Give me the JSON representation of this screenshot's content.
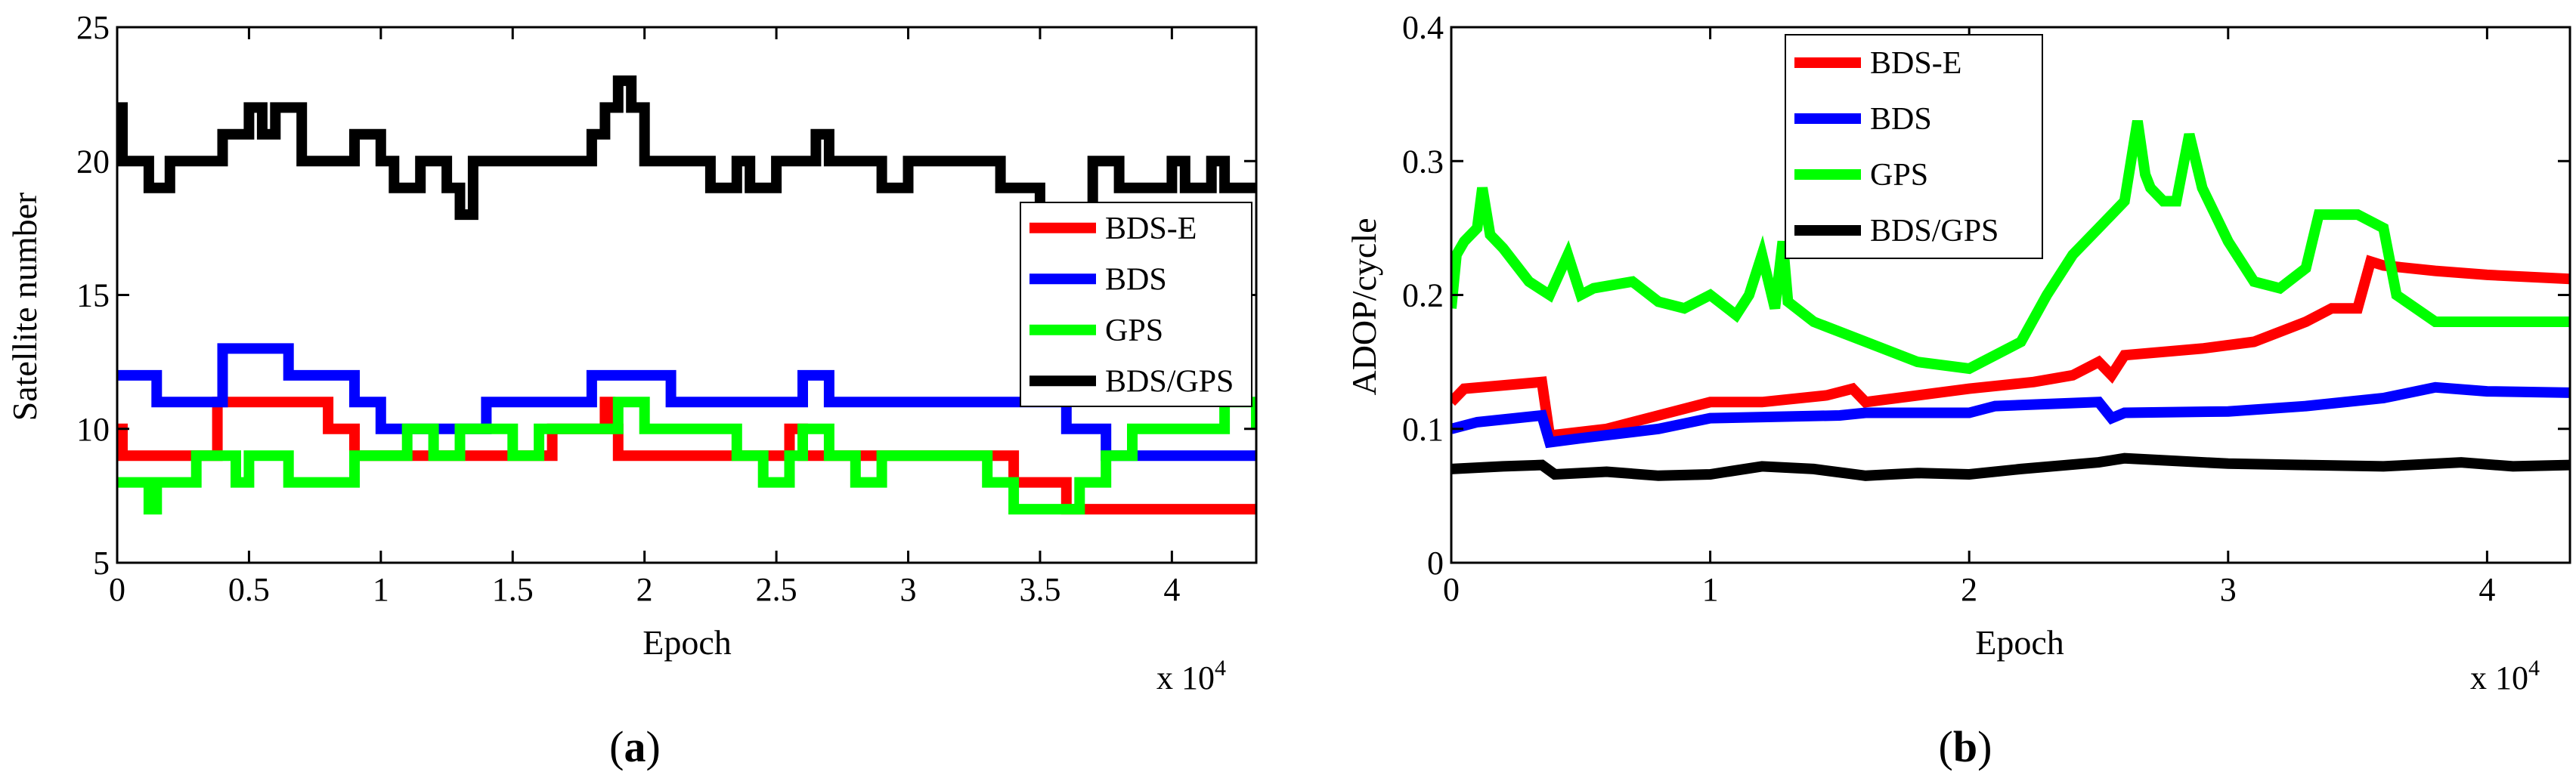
{
  "chart_data": [
    {
      "type": "line",
      "label": "(a)",
      "label_letter": "a",
      "xlabel": "Epoch",
      "ylabel": "Satellite number",
      "x_multiplier": "x 10",
      "x_multiplier_exp": "4",
      "xlim": [
        0,
        4.32
      ],
      "ylim": [
        5,
        25
      ],
      "xticks": [
        0,
        0.5,
        1,
        1.5,
        2,
        2.5,
        3,
        3.5,
        4
      ],
      "xtick_labels": [
        "0",
        "0.5",
        "1",
        "1.5",
        "2",
        "2.5",
        "3",
        "3.5",
        "4"
      ],
      "yticks": [
        5,
        10,
        15,
        20,
        25
      ],
      "ytick_labels": [
        "5",
        "10",
        "15",
        "20",
        "25"
      ],
      "legend_position": "right",
      "series": [
        {
          "name": "BDS-E",
          "color": "#ff0000",
          "step": true,
          "x": [
            0,
            0.02,
            0.35,
            0.38,
            0.75,
            0.8,
            0.9,
            1.15,
            1.6,
            1.65,
            1.7,
            1.8,
            1.85,
            1.87,
            1.9,
            1.95,
            2.0,
            2.5,
            2.55,
            2.6,
            2.95,
            3.0,
            3.35,
            3.4,
            3.6,
            3.7,
            4.32
          ],
          "values": [
            10,
            9,
            9,
            11,
            11,
            10,
            9,
            9,
            9,
            10,
            10,
            10,
            11,
            10,
            9,
            9,
            9,
            9,
            10,
            9,
            9,
            9,
            9,
            8,
            7,
            7,
            7
          ]
        },
        {
          "name": "BDS",
          "color": "#0000ff",
          "step": true,
          "x": [
            0,
            0.15,
            0.3,
            0.4,
            0.5,
            0.65,
            0.9,
            1.0,
            1.3,
            1.4,
            1.5,
            1.8,
            1.85,
            2.1,
            2.2,
            2.35,
            2.5,
            2.6,
            2.7,
            3.6,
            3.75,
            4.32
          ],
          "values": [
            12,
            11,
            11,
            13,
            13,
            12,
            11,
            10,
            10,
            11,
            11,
            12,
            12,
            11,
            11,
            11,
            11,
            12,
            11,
            10,
            9,
            9
          ]
        },
        {
          "name": "GPS",
          "color": "#00ff00",
          "step": true,
          "x": [
            0,
            0.12,
            0.15,
            0.3,
            0.45,
            0.5,
            0.65,
            0.8,
            0.9,
            1.0,
            1.1,
            1.2,
            1.3,
            1.4,
            1.5,
            1.6,
            1.65,
            1.8,
            1.9,
            2.0,
            2.2,
            2.35,
            2.45,
            2.55,
            2.6,
            2.7,
            2.8,
            2.9,
            3.0,
            3.1,
            3.2,
            3.3,
            3.4,
            3.5,
            3.65,
            3.75,
            3.85,
            4.0,
            4.2,
            4.32
          ],
          "values": [
            8,
            7,
            8,
            9,
            8,
            9,
            8,
            8,
            9,
            9,
            10,
            9,
            10,
            10,
            9,
            10,
            10,
            10,
            11,
            10,
            10,
            9,
            8,
            9,
            10,
            9,
            8,
            9,
            9,
            9,
            9,
            8,
            7,
            7,
            8,
            9,
            10,
            10,
            11,
            10
          ]
        },
        {
          "name": "BDS/GPS",
          "color": "#000000",
          "step": true,
          "x": [
            0,
            0.02,
            0.12,
            0.2,
            0.3,
            0.4,
            0.5,
            0.55,
            0.6,
            0.7,
            0.85,
            0.9,
            1.0,
            1.05,
            1.15,
            1.25,
            1.3,
            1.35,
            1.45,
            1.6,
            1.75,
            1.8,
            1.85,
            1.9,
            1.95,
            2.0,
            2.2,
            2.25,
            2.35,
            2.4,
            2.5,
            2.55,
            2.65,
            2.7,
            2.8,
            2.9,
            3.0,
            3.15,
            3.35,
            3.4,
            3.5,
            3.65,
            3.7,
            3.8,
            3.9,
            4.0,
            4.05,
            4.15,
            4.2,
            4.3,
            4.32
          ],
          "values": [
            22,
            20,
            19,
            20,
            20,
            21,
            22,
            21,
            22,
            20,
            20,
            21,
            20,
            19,
            20,
            19,
            18,
            20,
            20,
            20,
            20,
            21,
            22,
            23,
            22,
            20,
            20,
            19,
            20,
            19,
            20,
            20,
            21,
            20,
            20,
            19,
            20,
            20,
            19,
            19,
            18,
            18,
            20,
            19,
            19,
            20,
            19,
            20,
            19,
            19,
            19
          ]
        }
      ]
    },
    {
      "type": "line",
      "label": "(b)",
      "label_letter": "b",
      "xlabel": "Epoch",
      "ylabel": "ADOP/cycle",
      "x_multiplier": "x 10",
      "x_multiplier_exp": "4",
      "xlim": [
        0,
        4.32
      ],
      "ylim": [
        0,
        0.4
      ],
      "xticks": [
        0,
        1,
        2,
        3,
        4
      ],
      "xtick_labels": [
        "0",
        "1",
        "2",
        "3",
        "4"
      ],
      "yticks": [
        0,
        0.1,
        0.2,
        0.3,
        0.4
      ],
      "ytick_labels": [
        "0",
        "0.1",
        "0.2",
        "0.3",
        "0.4"
      ],
      "legend_position": "top-center",
      "series": [
        {
          "name": "BDS-E",
          "color": "#ff0000",
          "x": [
            0,
            0.05,
            0.35,
            0.38,
            0.6,
            0.8,
            1.0,
            1.2,
            1.45,
            1.55,
            1.6,
            2.0,
            2.25,
            2.4,
            2.5,
            2.55,
            2.6,
            2.9,
            3.1,
            3.3,
            3.4,
            3.5,
            3.55,
            3.6,
            3.8,
            4.0,
            4.32
          ],
          "values": [
            0.12,
            0.13,
            0.135,
            0.095,
            0.1,
            0.11,
            0.12,
            0.12,
            0.125,
            0.13,
            0.12,
            0.13,
            0.135,
            0.14,
            0.15,
            0.14,
            0.155,
            0.16,
            0.165,
            0.18,
            0.19,
            0.19,
            0.225,
            0.222,
            0.218,
            0.215,
            0.212
          ]
        },
        {
          "name": "BDS",
          "color": "#0000ff",
          "x": [
            0,
            0.1,
            0.35,
            0.38,
            0.5,
            0.8,
            1.0,
            1.5,
            1.6,
            2.0,
            2.1,
            2.5,
            2.55,
            2.6,
            3.0,
            3.3,
            3.6,
            3.8,
            4.0,
            4.32
          ],
          "values": [
            0.1,
            0.105,
            0.11,
            0.09,
            0.093,
            0.1,
            0.108,
            0.11,
            0.112,
            0.112,
            0.117,
            0.12,
            0.108,
            0.112,
            0.113,
            0.117,
            0.123,
            0.131,
            0.128,
            0.127
          ]
        },
        {
          "name": "GPS",
          "color": "#00ff00",
          "x": [
            0,
            0.02,
            0.05,
            0.1,
            0.12,
            0.15,
            0.2,
            0.3,
            0.38,
            0.45,
            0.5,
            0.55,
            0.7,
            0.8,
            0.9,
            1.0,
            1.1,
            1.15,
            1.2,
            1.25,
            1.28,
            1.3,
            1.4,
            1.6,
            1.8,
            2.0,
            2.2,
            2.3,
            2.4,
            2.5,
            2.6,
            2.65,
            2.68,
            2.7,
            2.75,
            2.8,
            2.85,
            2.9,
            3.0,
            3.1,
            3.2,
            3.3,
            3.35,
            3.4,
            3.5,
            3.6,
            3.65,
            3.8,
            4.0,
            4.2,
            4.32
          ],
          "values": [
            0.19,
            0.23,
            0.24,
            0.25,
            0.28,
            0.245,
            0.235,
            0.21,
            0.2,
            0.23,
            0.2,
            0.205,
            0.21,
            0.195,
            0.19,
            0.2,
            0.185,
            0.2,
            0.23,
            0.19,
            0.24,
            0.195,
            0.18,
            0.165,
            0.15,
            0.145,
            0.165,
            0.2,
            0.23,
            0.25,
            0.27,
            0.33,
            0.29,
            0.28,
            0.27,
            0.27,
            0.32,
            0.28,
            0.24,
            0.21,
            0.205,
            0.22,
            0.26,
            0.26,
            0.26,
            0.25,
            0.2,
            0.18,
            0.18,
            0.18,
            0.18
          ]
        },
        {
          "name": "BDS/GPS",
          "color": "#000000",
          "x": [
            0,
            0.2,
            0.35,
            0.4,
            0.6,
            0.8,
            1.0,
            1.2,
            1.4,
            1.6,
            1.8,
            2.0,
            2.2,
            2.5,
            2.6,
            2.8,
            3.0,
            3.3,
            3.6,
            3.9,
            4.1,
            4.32
          ],
          "values": [
            0.07,
            0.072,
            0.073,
            0.066,
            0.068,
            0.065,
            0.066,
            0.072,
            0.07,
            0.065,
            0.067,
            0.066,
            0.07,
            0.075,
            0.078,
            0.076,
            0.074,
            0.073,
            0.072,
            0.075,
            0.072,
            0.073
          ]
        }
      ]
    }
  ]
}
